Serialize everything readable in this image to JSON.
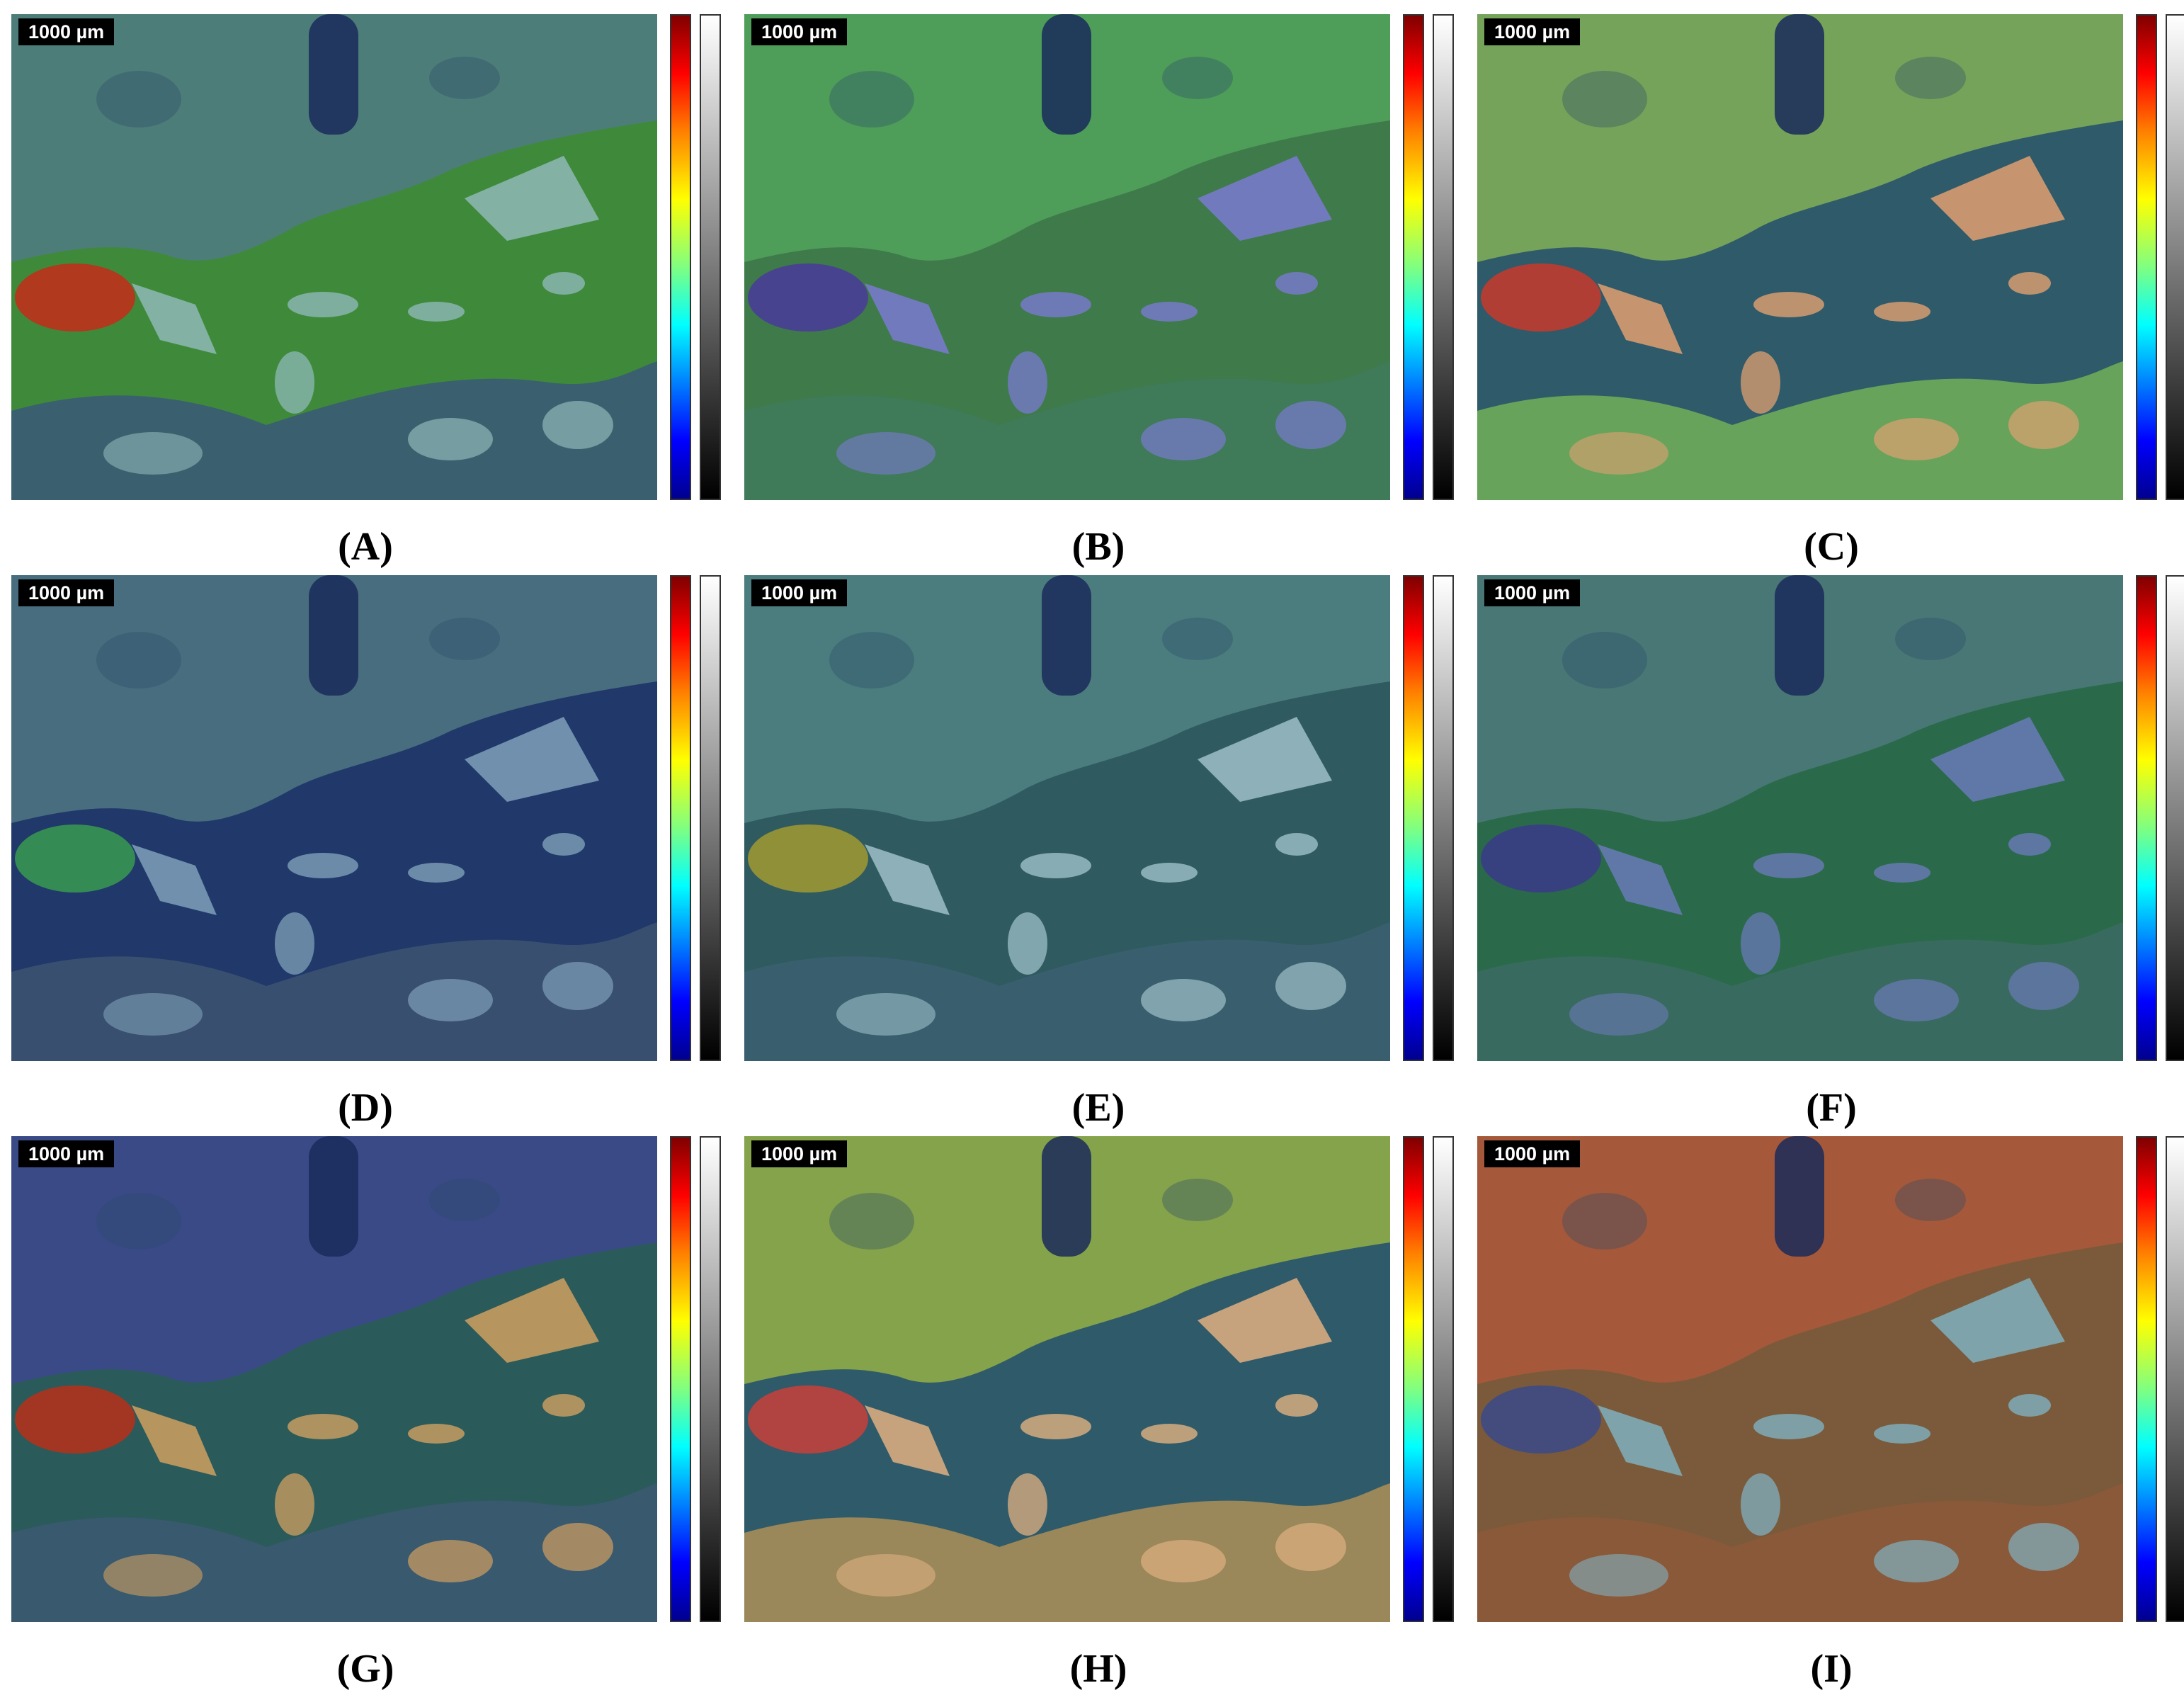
{
  "scale_label": "1000 µm",
  "panels": [
    {
      "id": "A",
      "label": "(A)",
      "upper": "#4d7c7c",
      "matrix": "#3f8a3a",
      "lower": "#3a5e72",
      "accent": "#c42a1a",
      "grains": "#8fb8b8"
    },
    {
      "id": "B",
      "label": "(B)",
      "upper": "#4fa05a",
      "matrix": "#3f7a4a",
      "lower": "#3f7a5a",
      "accent": "#4a3a9a",
      "grains": "#7a7ad0"
    },
    {
      "id": "C",
      "label": "(C)",
      "upper": "#7aa85a",
      "matrix": "#2f5a6a",
      "lower": "#6aa85a",
      "accent": "#c83a2a",
      "grains": "#e0a070"
    },
    {
      "id": "D",
      "label": "(D)",
      "upper": "#4a7080",
      "matrix": "#20386a",
      "lower": "#3a5070",
      "accent": "#3a9a50",
      "grains": "#7fa0b8"
    },
    {
      "id": "E",
      "label": "(E)",
      "upper": "#4d8080",
      "matrix": "#2f5a60",
      "lower": "#3a6070",
      "accent": "#a09a30",
      "grains": "#9fc0c8"
    },
    {
      "id": "F",
      "label": "(F)",
      "upper": "#4a7878",
      "matrix": "#2a6a4a",
      "lower": "#3a6a60",
      "accent": "#3a3a8a",
      "grains": "#6a7ab8"
    },
    {
      "id": "G",
      "label": "(G)",
      "upper": "#3a4a8a",
      "matrix": "#2a5a5a",
      "lower": "#3a5a70",
      "accent": "#b8301a",
      "grains": "#d0a060"
    },
    {
      "id": "H",
      "label": "(H)",
      "upper": "#8aa84a",
      "matrix": "#2f5a6a",
      "lower": "#a08a5a",
      "accent": "#c8403a",
      "grains": "#e0b080"
    },
    {
      "id": "I",
      "label": "(I)",
      "upper": "#a85a3a",
      "matrix": "#7a5a3a",
      "lower": "#8a5a3a",
      "accent": "#3a4a8a",
      "grains": "#80b0c0"
    }
  ]
}
